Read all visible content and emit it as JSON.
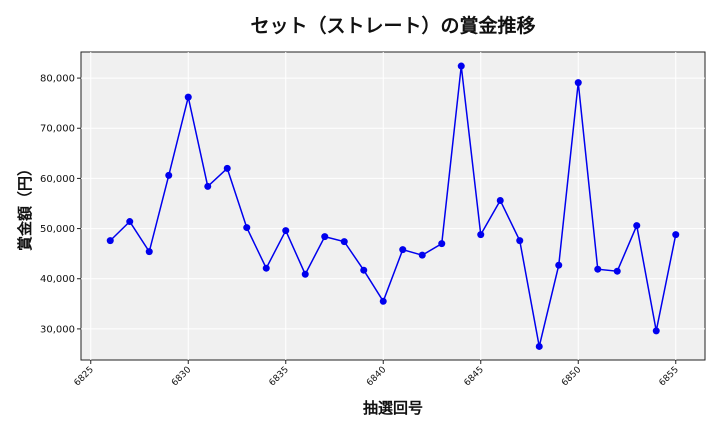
{
  "chart_data": {
    "type": "line",
    "title": "セット（ストレート）の賞金推移",
    "xlabel": "抽選回号",
    "ylabel": "賞金額（円）",
    "xlim": [
      6824.5,
      6856.5
    ],
    "ylim": [
      23800,
      85200
    ],
    "xticks": [
      6825,
      6830,
      6835,
      6840,
      6845,
      6850,
      6855
    ],
    "yticks": [
      30000,
      40000,
      50000,
      60000,
      70000,
      80000
    ],
    "ytick_labels": [
      "30,000",
      "40,000",
      "50,000",
      "60,000",
      "70,000",
      "80,000"
    ],
    "grid": true,
    "color": "#0000ee",
    "background": "#f0f0f0",
    "x": [
      6826,
      6827,
      6828,
      6829,
      6830,
      6831,
      6832,
      6833,
      6834,
      6835,
      6836,
      6837,
      6838,
      6839,
      6840,
      6841,
      6842,
      6843,
      6844,
      6845,
      6846,
      6847,
      6848,
      6849,
      6850,
      6851,
      6852,
      6853,
      6854,
      6855
    ],
    "values": [
      47600,
      51400,
      45400,
      60600,
      76200,
      58400,
      62000,
      50200,
      42100,
      49600,
      40900,
      48400,
      47400,
      41700,
      35500,
      45800,
      44700,
      47000,
      82400,
      48800,
      55600,
      47600,
      26500,
      42700,
      79100,
      41900,
      41500,
      50600,
      29600,
      48800
    ]
  }
}
